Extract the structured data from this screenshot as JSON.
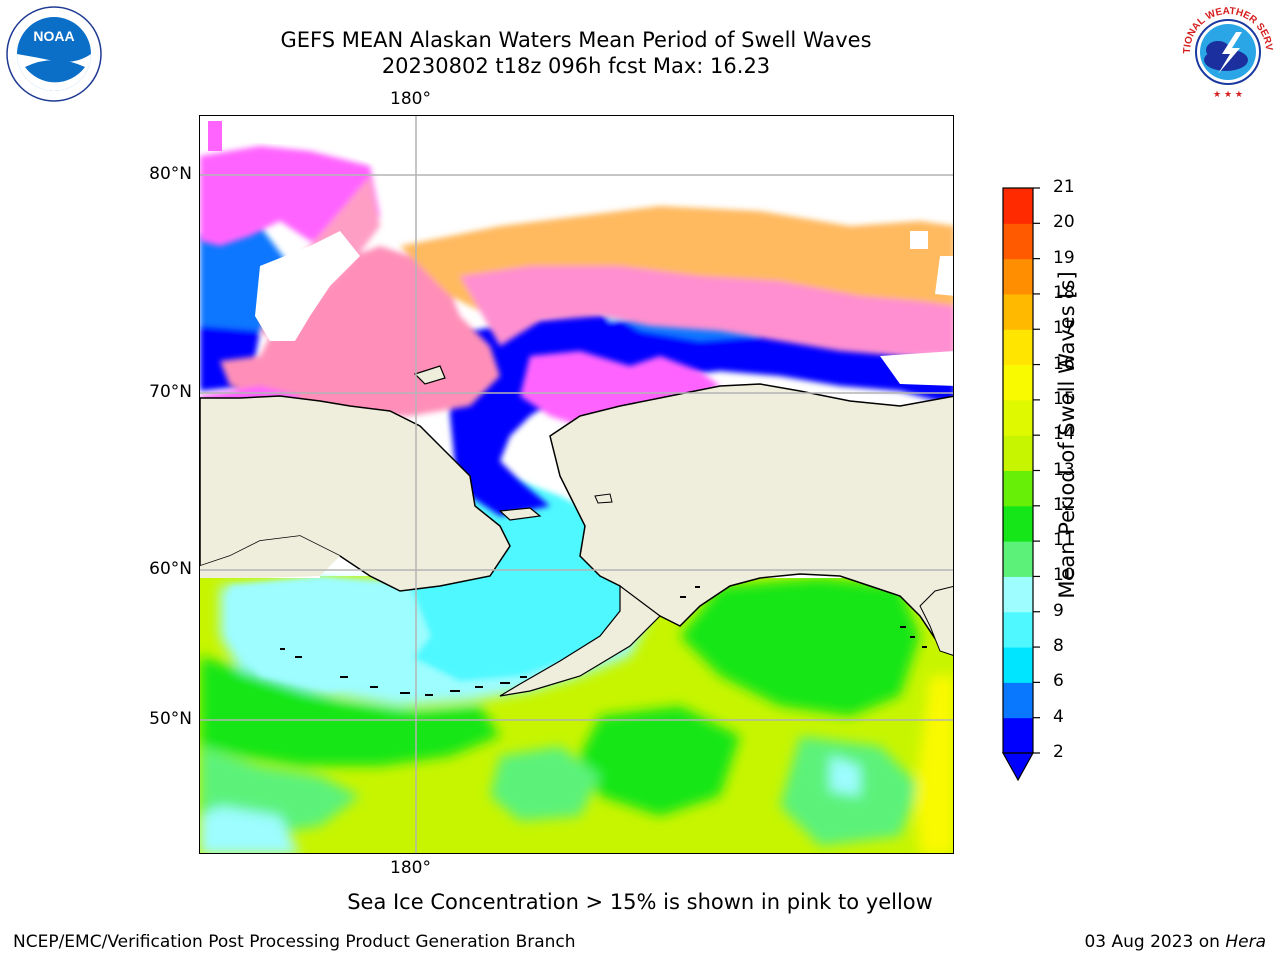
{
  "title": {
    "line1": "GEFS MEAN Alaskan Waters Mean Period of Swell Waves",
    "line2": "20230802 t18z 096h fcst   Max: 16.23"
  },
  "map": {
    "lat_labels": [
      "80°N",
      "70°N",
      "60°N",
      "50°N"
    ],
    "lon_label_top": "180°",
    "lon_label_bottom": "180°",
    "land_color": "#efeddc",
    "grid_color": "#b4b4b4"
  },
  "colorbar": {
    "label": "Mean Period of Swell Waves [s]",
    "ticks": [
      "2",
      "4",
      "6",
      "8",
      "9",
      "10",
      "11",
      "12",
      "13",
      "14",
      "15",
      "16",
      "17",
      "18",
      "19",
      "20",
      "21"
    ],
    "colors": [
      "#0000ff",
      "#0a77ff",
      "#00e5ff",
      "#4ff8ff",
      "#9dfdff",
      "#5cf27a",
      "#14e617",
      "#68ef08",
      "#c7f500",
      "#dff900",
      "#f9f900",
      "#ffe500",
      "#ffba00",
      "#ff8e00",
      "#ff5a00",
      "#ff2a00",
      "#ff0000"
    ]
  },
  "footer": {
    "note": "Sea Ice Concentration > 15% is shown in pink to yellow",
    "credit": "NCEP/EMC/Verification Post Processing Product Generation Branch",
    "date": "03 Aug 2023 on ",
    "host": "Hera"
  },
  "logos": {
    "noaa_text": "NOAA",
    "nws_ring": "NATIONAL WEATHER SERVICE"
  }
}
